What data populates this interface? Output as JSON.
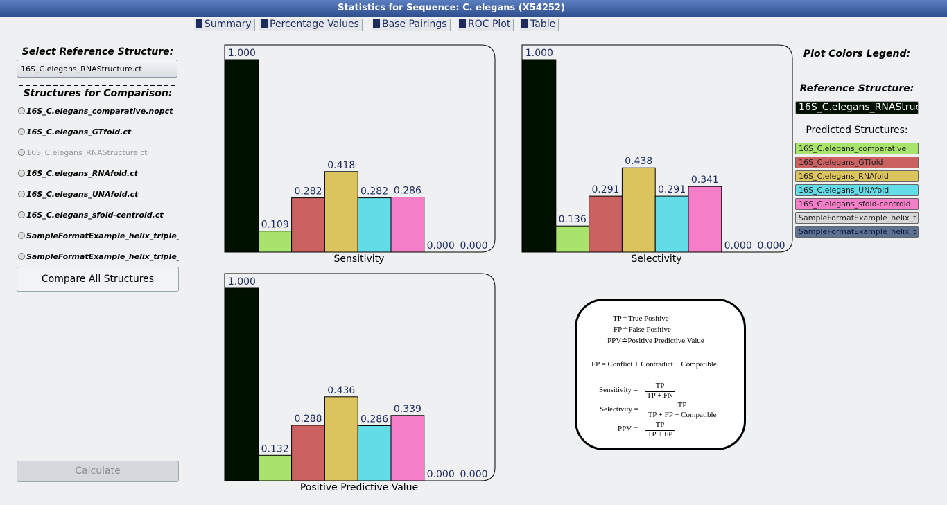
{
  "window": {
    "title": "Statistics for Sequence: C. elegans (X54252)"
  },
  "tabs": [
    "Summary",
    "Percentage Values",
    "Base Pairings",
    "ROC Plot",
    "Table"
  ],
  "sidebar": {
    "reference_label": "Select Reference Structure:",
    "reference_value": "16S_C.elegans_RNAStructure.ct",
    "comparison_label": "Structures for Comparison:",
    "structures": [
      {
        "name": "16S_C.elegans_comparative.nopct",
        "enabled": true
      },
      {
        "name": "16S_C.elegans_GTfold.ct",
        "enabled": true
      },
      {
        "name": "16S_C.elegans_RNAStructure.ct",
        "enabled": false
      },
      {
        "name": "16S_C.elegans_RNAfold.ct",
        "enabled": true
      },
      {
        "name": "16S_C.elegans_UNAfold.ct",
        "enabled": true
      },
      {
        "name": "16S_C.elegans_sfold-centroid.ct",
        "enabled": true
      },
      {
        "name": "SampleFormatExample_helix_triple_forr",
        "enabled": true
      },
      {
        "name": "SampleFormatExample_helix_triple_forr",
        "enabled": true
      }
    ],
    "compare_button": "Compare All Structures",
    "calculate_button": "Calculate"
  },
  "chart_data": [
    {
      "type": "bar",
      "title": "Sensitivity",
      "ylim": [
        0,
        1
      ],
      "values": [
        1,
        0.109,
        0.282,
        0.418,
        0.282,
        0.286,
        0,
        0
      ],
      "value_labels": [
        "1.000",
        "0.109",
        "0.282",
        "0.418",
        "0.282",
        "0.286",
        "0.000",
        "0.000"
      ],
      "colors": [
        "#001100",
        "#a8e46c",
        "#cc6161",
        "#dbc35e",
        "#62dce6",
        "#f47fc8",
        "#d8d8d8",
        "#5f7391"
      ]
    },
    {
      "type": "bar",
      "title": "Selectivity",
      "ylim": [
        0,
        1
      ],
      "values": [
        1,
        0.136,
        0.291,
        0.438,
        0.291,
        0.341,
        0,
        0
      ],
      "value_labels": [
        "1.000",
        "0.136",
        "0.291",
        "0.438",
        "0.291",
        "0.341",
        "0.000",
        "0.000"
      ],
      "colors": [
        "#001100",
        "#a8e46c",
        "#cc6161",
        "#dbc35e",
        "#62dce6",
        "#f47fc8",
        "#d8d8d8",
        "#5f7391"
      ]
    },
    {
      "type": "bar",
      "title": "Positive Predictive Value",
      "ylim": [
        0,
        1
      ],
      "values": [
        1,
        0.132,
        0.288,
        0.436,
        0.286,
        0.339,
        0,
        0
      ],
      "value_labels": [
        "1.000",
        "0.132",
        "0.288",
        "0.436",
        "0.286",
        "0.339",
        "0.000",
        "0.000"
      ],
      "colors": [
        "#001100",
        "#a8e46c",
        "#cc6161",
        "#dbc35e",
        "#62dce6",
        "#f47fc8",
        "#d8d8d8",
        "#5f7391"
      ]
    }
  ],
  "legend": {
    "title": "Plot Colors Legend:",
    "reference_label": "Reference Structure:",
    "reference": {
      "name": "16S_C.elegans_RNAStruc",
      "color": "#001100"
    },
    "predicted_label": "Predicted Structures:",
    "predicted": [
      {
        "name": "16S_C.elegans_comparative",
        "color": "#a8e46c"
      },
      {
        "name": "16S_C.elegans_GTfold",
        "color": "#cc6161"
      },
      {
        "name": "16S_C.elegans_RNAfold",
        "color": "#dbc35e"
      },
      {
        "name": "16S_C.elegans_UNAfold",
        "color": "#62dce6"
      },
      {
        "name": "16S_C.elegans_sfold-centroid",
        "color": "#f47fc8"
      },
      {
        "name": "SampleFormatExample_helix_t",
        "color": "#d8d8d8"
      },
      {
        "name": "SampleFormatExample_helix_t",
        "color": "#5f7391"
      }
    ]
  },
  "formulas": {
    "definitions": [
      "TP≐True Positive",
      "FP≐False Positive",
      "PPV≐Positive Predictive Value"
    ],
    "fp": "FP = Conflict + Contradict + Compatible",
    "ratios": [
      {
        "label": "Sensitivity =",
        "numerator": "TP",
        "denominator": "TP + FN"
      },
      {
        "label": "Selectivity =",
        "numerator": "TP",
        "denominator": "TP + FP − Compatible"
      },
      {
        "label": "PPV =",
        "numerator": "TP",
        "denominator": "TP + FP"
      }
    ]
  }
}
